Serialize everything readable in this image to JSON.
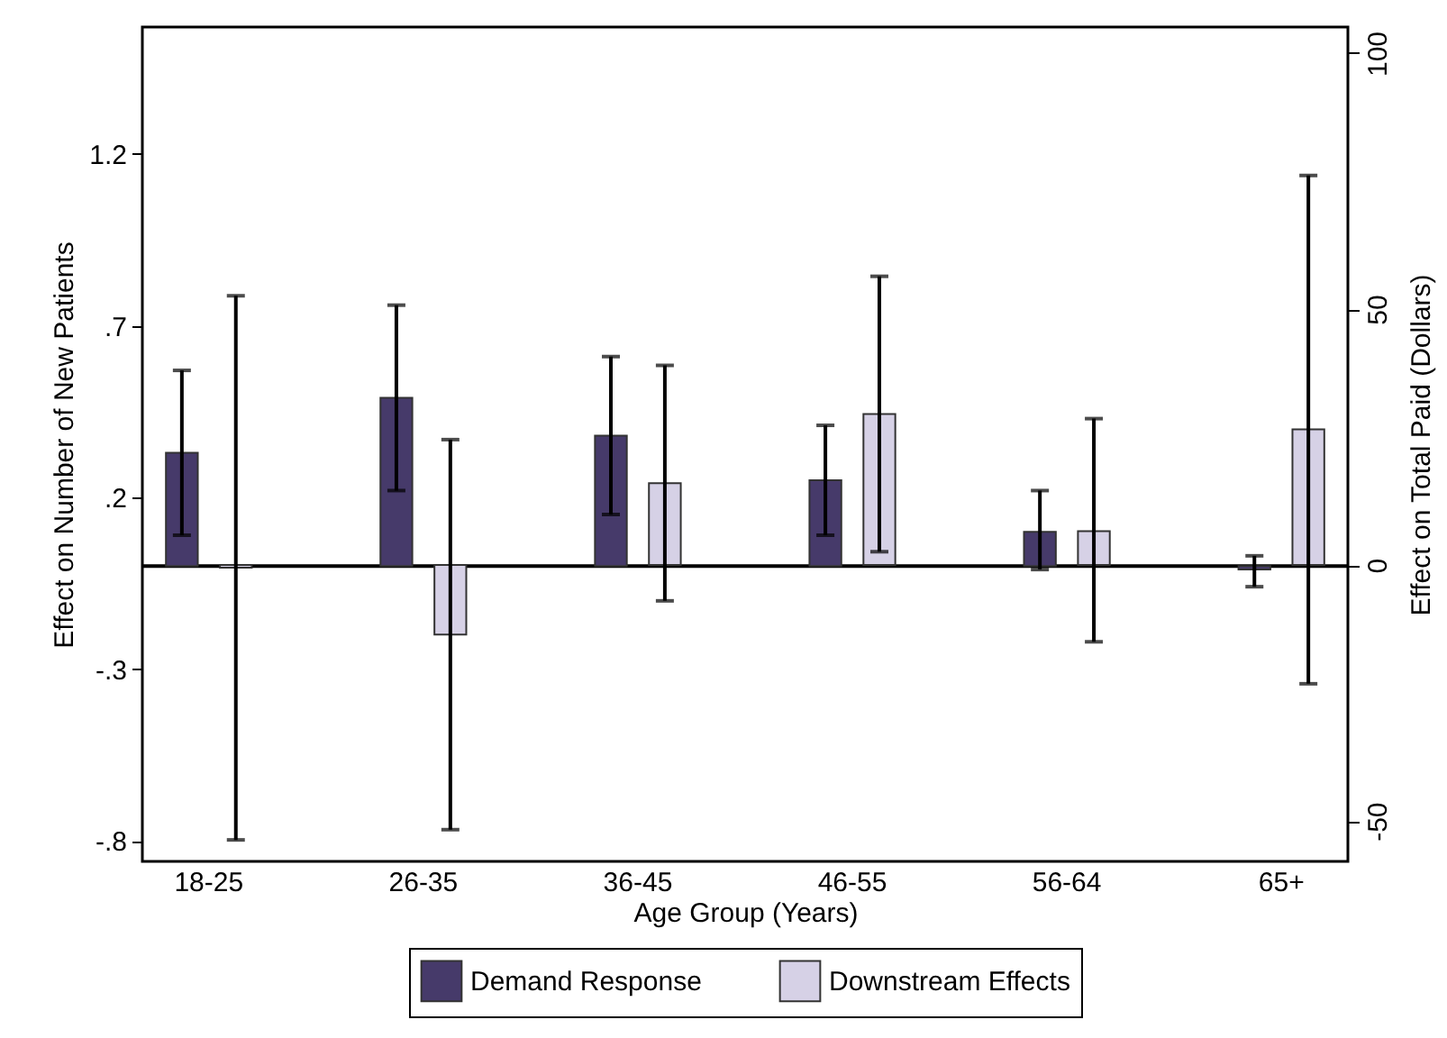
{
  "chart_data": {
    "type": "bar",
    "categories": [
      "18-25",
      "26-35",
      "36-45",
      "46-55",
      "56-64",
      "65+"
    ],
    "xlabel": "Age Group (Years)",
    "ylabel": "Effect on Number of New Patients",
    "y2label": "Effect on Total Paid (Dollars)",
    "series": [
      {
        "name": "Demand Response",
        "color": "#463a6a",
        "axis": "y",
        "values": [
          0.33,
          0.49,
          0.38,
          0.25,
          0.1,
          -0.01
        ],
        "errors": [
          [
            0.09,
            0.57
          ],
          [
            0.22,
            0.76
          ],
          [
            0.15,
            0.61
          ],
          [
            0.09,
            0.41
          ],
          [
            -0.01,
            0.22
          ],
          [
            -0.06,
            0.03
          ]
        ]
      },
      {
        "name": "Downstream Effects",
        "color": "#d6d1e6",
        "axis": "y2",
        "values": [
          -0.5,
          -13.6,
          16.0,
          29.5,
          6.6,
          26.5
        ],
        "errors": [
          [
            -53.7,
            52.6
          ],
          [
            -51.7,
            24.5
          ],
          [
            -7.0,
            39.0
          ],
          [
            2.6,
            56.4
          ],
          [
            -15.0,
            28.6
          ],
          [
            -23.2,
            76.1
          ]
        ]
      }
    ],
    "ylim": [
      -0.86,
      1.57
    ],
    "yticks": [
      {
        "value": -0.8,
        "label": "-.8"
      },
      {
        "value": -0.3,
        "label": "-.3"
      },
      {
        "value": 0.2,
        "label": ".2"
      },
      {
        "value": 0.7,
        "label": ".7"
      },
      1.2
    ],
    "y2lim": [
      -57.9,
      105.1
    ],
    "y2ticks": [
      -50,
      0,
      50,
      100
    ],
    "ref_lines": [
      {
        "axis": "y",
        "value": 0,
        "color": "#000000"
      }
    ],
    "grid": false,
    "legend": "bottom"
  }
}
